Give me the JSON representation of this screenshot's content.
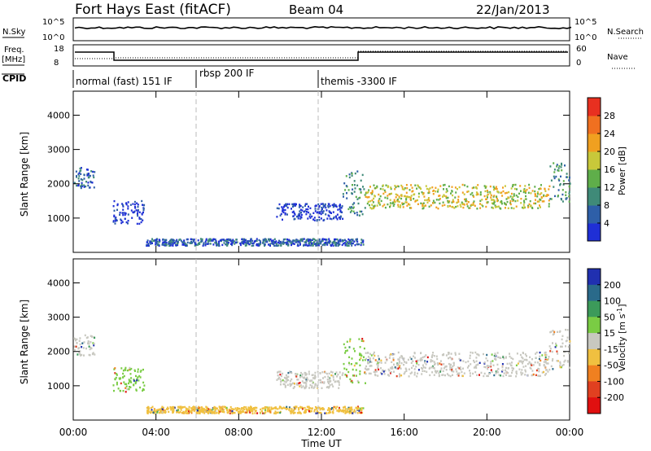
{
  "header": {
    "title": "Fort Hays East (fitACF)",
    "beam": "Beam 04",
    "date": "22/Jan/2013"
  },
  "strip1": {
    "left_label": "N.Sky",
    "right_label": "N.Search",
    "left_ticks": [
      "10^5",
      "10^0"
    ],
    "right_ticks": [
      "10^5",
      "10^0"
    ]
  },
  "strip2": {
    "left_label_1": "Freq.",
    "left_label_2": "[MHz]",
    "right_label": "Nave",
    "left_ticks": [
      "18",
      "8"
    ],
    "right_ticks": [
      "60",
      "0"
    ]
  },
  "cpid": {
    "label": "CPID",
    "modes": [
      "normal (fast) 151 IF",
      "rbsp 200 IF",
      "themis -3300 IF"
    ]
  },
  "chart_data": [
    {
      "type": "heatmap",
      "title": "Power",
      "ylabel": "Slant Range [km]",
      "xlabel": "Time UT",
      "x_ticks": [
        "00:00",
        "04:00",
        "08:00",
        "12:00",
        "16:00",
        "20:00",
        "00:00"
      ],
      "y_ticks": [
        "1000",
        "2000",
        "3000",
        "4000"
      ],
      "ylim": [
        0,
        4700
      ],
      "colorbar_label": "Power [dB]",
      "colorbar_ticks": [
        "4",
        "8",
        "12",
        "16",
        "20",
        "24",
        "28"
      ],
      "colors": [
        "#1f2fd6",
        "#2e5fa8",
        "#3f8a78",
        "#5fae4a",
        "#c8c83a",
        "#f0a020",
        "#f07020",
        "#e83020"
      ],
      "regions": [
        {
          "t0": 0.0,
          "t1": 1.0,
          "r0": 1900,
          "r1": 2500,
          "level": 1
        },
        {
          "t0": 1.9,
          "t1": 3.4,
          "r0": 850,
          "r1": 1550,
          "level": 0
        },
        {
          "t0": 3.5,
          "t1": 14.0,
          "r0": 220,
          "r1": 420,
          "level": 1
        },
        {
          "t0": 9.8,
          "t1": 13.0,
          "r0": 950,
          "r1": 1450,
          "level": 0
        },
        {
          "t0": 13.0,
          "t1": 14.1,
          "r0": 1100,
          "r1": 2400,
          "level": 2
        },
        {
          "t0": 14.1,
          "t1": 23.0,
          "r0": 1300,
          "r1": 2000,
          "level": 4
        },
        {
          "t0": 23.0,
          "t1": 24.0,
          "r0": 1500,
          "r1": 2700,
          "level": 2
        }
      ]
    },
    {
      "type": "heatmap",
      "title": "Velocity",
      "ylabel": "Slant Range [km]",
      "xlabel": "Time UT",
      "x_ticks": [
        "00:00",
        "04:00",
        "08:00",
        "12:00",
        "16:00",
        "20:00",
        "00:00"
      ],
      "y_ticks": [
        "1000",
        "2000",
        "3000",
        "4000"
      ],
      "ylim": [
        0,
        4700
      ],
      "colorbar_label": "Velocity [m s",
      "colorbar_sup": "-1",
      "colorbar_label_end": "]",
      "colorbar_ticks": [
        "200",
        "100",
        "50",
        "15",
        "-15",
        "-50",
        "-100",
        "-200"
      ],
      "colors": [
        "#2030b0",
        "#2a6a8a",
        "#3c9a5a",
        "#7acc44",
        "#c8c8c0",
        "#f0c040",
        "#f08020",
        "#e04020",
        "#e01010"
      ],
      "regions": [
        {
          "t0": 0.0,
          "t1": 1.0,
          "r0": 1900,
          "r1": 2500,
          "color": "#c8c8c0"
        },
        {
          "t0": 1.9,
          "t1": 3.4,
          "r0": 850,
          "r1": 1550,
          "color": "#7acc44"
        },
        {
          "t0": 3.5,
          "t1": 14.0,
          "r0": 220,
          "r1": 420,
          "color": "#f0c040"
        },
        {
          "t0": 9.8,
          "t1": 13.0,
          "r0": 950,
          "r1": 1450,
          "color": "#c8c8c0"
        },
        {
          "t0": 13.0,
          "t1": 14.1,
          "r0": 1100,
          "r1": 2400,
          "color": "#7acc44"
        },
        {
          "t0": 14.1,
          "t1": 23.0,
          "r0": 1300,
          "r1": 2000,
          "color": "#c8c8c0"
        },
        {
          "t0": 23.0,
          "t1": 24.0,
          "r0": 1500,
          "r1": 2700,
          "color": "#c8c8c0"
        }
      ]
    }
  ]
}
